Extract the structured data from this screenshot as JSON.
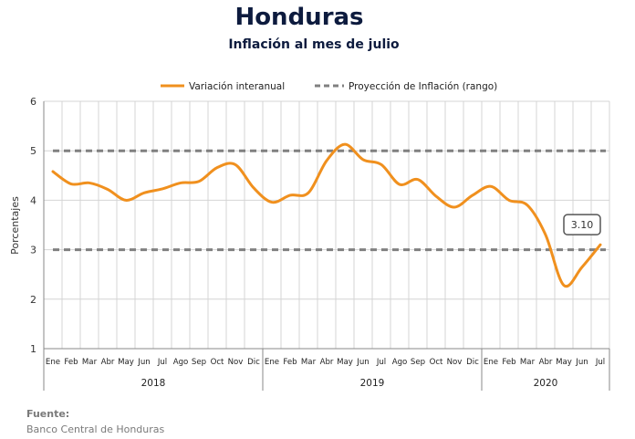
{
  "chart_data": {
    "type": "line",
    "title": "Honduras",
    "subtitle": "Inflación al mes de julio",
    "ylabel": "Porcentajes",
    "xlabel": "",
    "ylim": [
      1,
      6
    ],
    "yticks": [
      "1",
      "2",
      "3",
      "4",
      "5",
      "6"
    ],
    "grid": true,
    "legend_position": "top",
    "months": [
      "Ene",
      "Feb",
      "Mar",
      "Abr",
      "May",
      "Jun",
      "Jul",
      "Ago",
      "Sep",
      "Oct",
      "Nov",
      "Dic",
      "Ene",
      "Feb",
      "Mar",
      "Abr",
      "May",
      "Jun",
      "Jul",
      "Ago",
      "Sep",
      "Oct",
      "Nov",
      "Dic",
      "Ene",
      "Feb",
      "Mar",
      "Abr",
      "May",
      "Jun",
      "Jul"
    ],
    "years": [
      {
        "label": "2018",
        "months": 12
      },
      {
        "label": "2019",
        "months": 12
      },
      {
        "label": "2020",
        "months": 7
      }
    ],
    "series": [
      {
        "name": "Variación interanual",
        "color": "#f0901e",
        "values": [
          4.58,
          4.33,
          4.35,
          4.22,
          4.0,
          4.15,
          4.23,
          4.35,
          4.38,
          4.66,
          4.72,
          4.25,
          3.96,
          4.1,
          4.15,
          4.8,
          5.13,
          4.82,
          4.72,
          4.32,
          4.42,
          4.08,
          3.86,
          4.1,
          4.28,
          4.0,
          3.9,
          3.3,
          2.28,
          2.65,
          3.1
        ]
      },
      {
        "name": "Proyección de Inflación (rango)",
        "color": "#808080",
        "upper": 5,
        "lower": 3
      }
    ],
    "annotations": [
      {
        "text": "3.10",
        "month_index": 30,
        "value": 3.1
      }
    ]
  },
  "source": {
    "heading": "Fuente:",
    "text": "Banco Central de Honduras"
  }
}
